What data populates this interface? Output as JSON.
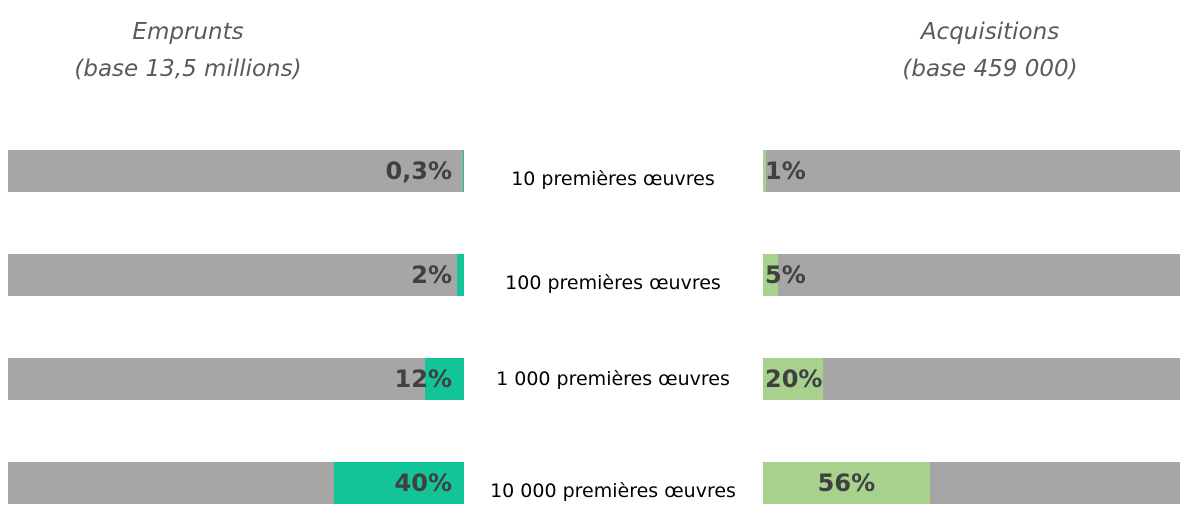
{
  "chart_data": {
    "type": "butterfly-bar",
    "categories": [
      "10 premières œuvres",
      "100 premières œuvres",
      "1 000 premières œuvres",
      "10 000 premières œuvres"
    ],
    "xlim": [
      0,
      140
    ],
    "track_color": "#a6a6a6",
    "series": [
      {
        "name": "Emprunts",
        "subtitle": "(base 13,5 millions)",
        "color": "#14c499",
        "values": [
          0.3,
          2,
          12,
          40
        ],
        "value_labels": [
          "0,3%",
          "2%",
          "12%",
          "40%"
        ]
      },
      {
        "name": "Acquisitions",
        "subtitle": "(base 459 000)",
        "color": "#a9d18e",
        "values": [
          1,
          5,
          20,
          56
        ],
        "value_labels": [
          "1%",
          "5%",
          "20%",
          "56%"
        ]
      }
    ]
  }
}
